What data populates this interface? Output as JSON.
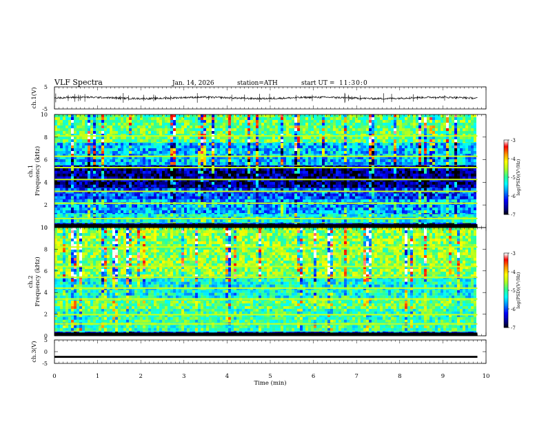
{
  "header": {
    "title": "VLF  Spectra",
    "date": "Jan. 14, 2026",
    "station": "station=ATH",
    "start_label": "start  UT  =",
    "start_time": "11:30:0"
  },
  "colors": {
    "frame": "#000000",
    "waveform": "#111111",
    "colormap": [
      "#000000",
      "#00007f",
      "#0000ff",
      "#00a0ff",
      "#00ffff",
      "#30ff90",
      "#b0ff20",
      "#ffff00",
      "#ff9000",
      "#ff0000",
      "#c00000",
      "#ffffff"
    ]
  },
  "chart_data": [
    {
      "type": "line",
      "panel": "ch1-waveform",
      "ylabel": "ch.1(V)",
      "ylim": [
        -5,
        5
      ],
      "yticks": [
        "5",
        "-5"
      ],
      "xlim": [
        0,
        10
      ],
      "description_values": {
        "baseline": 0,
        "noise_amplitude": 0.8,
        "end_time": 9.8
      }
    },
    {
      "type": "heatmap",
      "panel": "ch1-spectrogram",
      "ylabel": "ch.1 Frequency (kHz)",
      "ylim": [
        0,
        10
      ],
      "yticks": [
        "0",
        "2",
        "4",
        "6",
        "8",
        "10"
      ],
      "xlim": [
        0,
        10
      ],
      "colorbar": {
        "label": "log(PSD)(V²/Hz)",
        "range": [
          -7,
          -3
        ],
        "ticks": [
          "-3",
          "-4",
          "-5",
          "-6",
          "-7"
        ]
      },
      "bands": [
        {
          "f_low": 0.0,
          "f_high": 0.4,
          "level": -6.5
        },
        {
          "f_low": 0.4,
          "f_high": 1.2,
          "level": -5.2
        },
        {
          "f_low": 1.2,
          "f_high": 2.5,
          "level": -5.6
        },
        {
          "f_low": 2.5,
          "f_high": 3.5,
          "level": -6.0
        },
        {
          "f_low": 3.5,
          "f_high": 5.5,
          "level": -6.6
        },
        {
          "f_low": 5.5,
          "f_high": 7.5,
          "level": -5.5
        },
        {
          "f_low": 7.5,
          "f_high": 10.0,
          "level": -4.8
        }
      ]
    },
    {
      "type": "heatmap",
      "panel": "ch2-spectrogram",
      "ylabel": "ch.2 Frequency (kHz)",
      "ylim": [
        0,
        10
      ],
      "yticks": [
        "0",
        "2",
        "4",
        "6",
        "8",
        "10"
      ],
      "xlim": [
        0,
        10
      ],
      "colorbar": {
        "label": "log(PSD)(V²/Hz)",
        "range": [
          -7,
          -3
        ],
        "ticks": [
          "-3",
          "-4",
          "-5",
          "-6",
          "-7"
        ]
      },
      "bands": [
        {
          "f_low": 0.0,
          "f_high": 0.4,
          "level": -6.0
        },
        {
          "f_low": 0.4,
          "f_high": 2.5,
          "level": -5.0
        },
        {
          "f_low": 2.5,
          "f_high": 3.5,
          "level": -4.8
        },
        {
          "f_low": 3.5,
          "f_high": 5.5,
          "level": -5.2
        },
        {
          "f_low": 5.5,
          "f_high": 10.0,
          "level": -4.6
        }
      ]
    },
    {
      "type": "line",
      "panel": "ch3-waveform",
      "ylabel": "ch.3(V)",
      "ylim": [
        -5,
        5
      ],
      "yticks": [
        "5",
        "0",
        "-5"
      ],
      "xlim": [
        0,
        10
      ],
      "xlabel": "Time (min)",
      "xticks": [
        "0",
        "1",
        "2",
        "3",
        "4",
        "5",
        "6",
        "7",
        "8",
        "9",
        "10"
      ],
      "description_values": {
        "baseline": -2.2,
        "end_time": 9.8
      }
    }
  ]
}
